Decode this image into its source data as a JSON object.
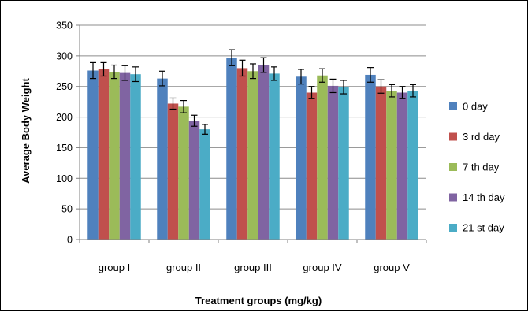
{
  "chart_data": {
    "type": "bar",
    "title": "",
    "xlabel": "Treatment groups (mg/kg)",
    "ylabel": "Average Body Weight",
    "ylim": [
      0,
      350
    ],
    "yticks": [
      0,
      50,
      100,
      150,
      200,
      250,
      300,
      350
    ],
    "grid": true,
    "legend_position": "right",
    "categories": [
      "group I",
      "group II",
      "group III",
      "group IV",
      "group V"
    ],
    "series": [
      {
        "name": "0 day",
        "color": "#4F81BD",
        "values": [
          276,
          263,
          297,
          266,
          269
        ],
        "errors": [
          13,
          12,
          13,
          12,
          12
        ]
      },
      {
        "name": "3 rd day",
        "color": "#C0504D",
        "values": [
          278,
          222,
          280,
          240,
          250
        ],
        "errors": [
          11,
          9,
          13,
          10,
          11
        ]
      },
      {
        "name": "7 th day",
        "color": "#9BBB59",
        "values": [
          274,
          217,
          275,
          268,
          243
        ],
        "errors": [
          11,
          10,
          12,
          11,
          10
        ]
      },
      {
        "name": "14 th day",
        "color": "#8064A2",
        "values": [
          272,
          194,
          285,
          251,
          240
        ],
        "errors": [
          12,
          9,
          12,
          11,
          10
        ]
      },
      {
        "name": "21 st day",
        "color": "#4BACC6",
        "values": [
          270,
          180,
          271,
          249,
          243
        ],
        "errors": [
          12,
          8,
          11,
          11,
          10
        ]
      }
    ]
  }
}
